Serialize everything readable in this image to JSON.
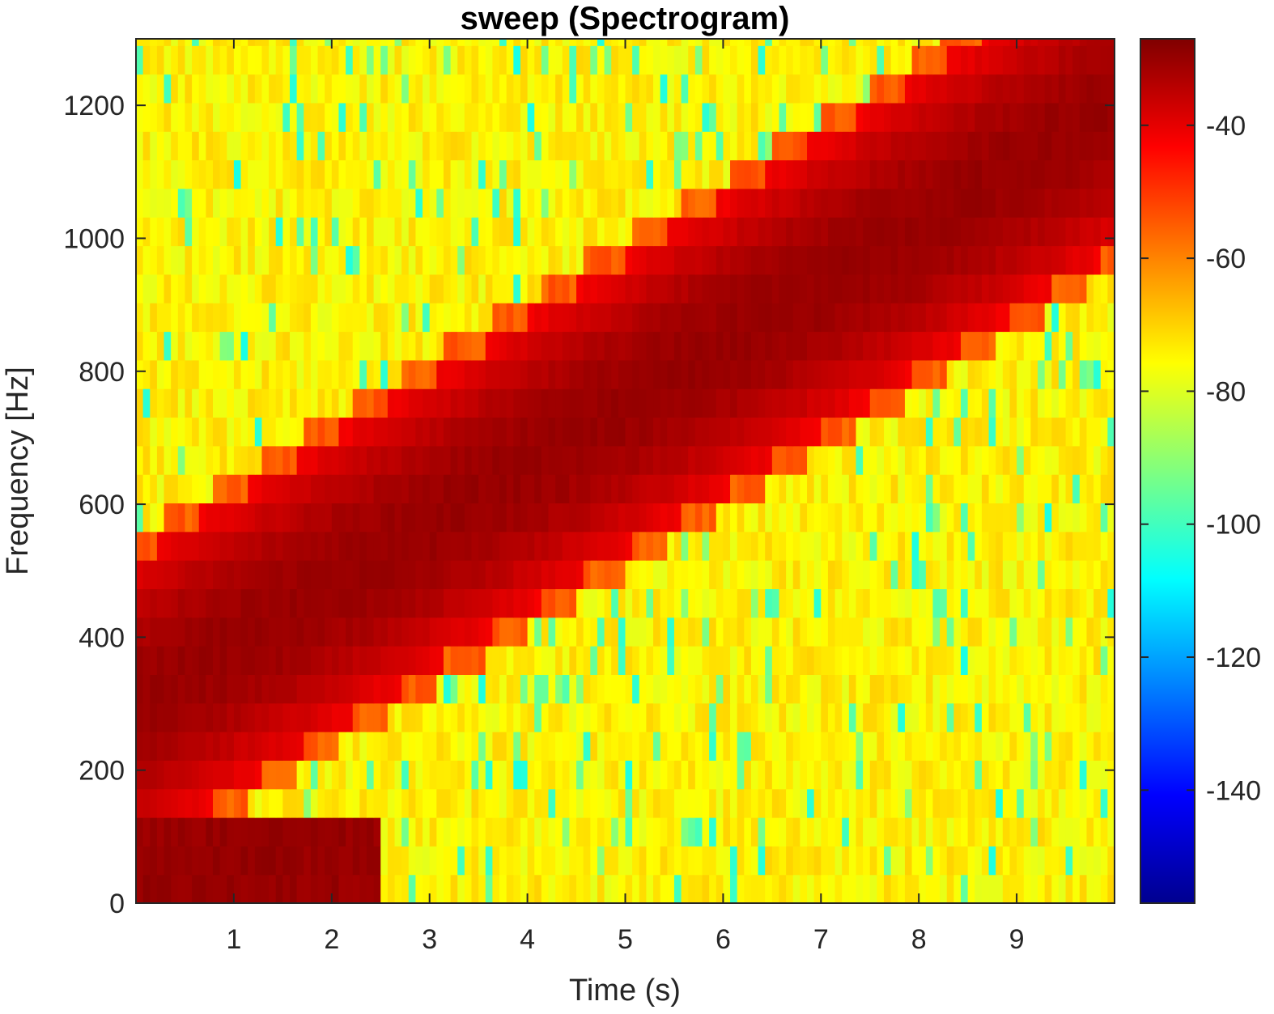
{
  "chart_data": {
    "type": "heatmap",
    "title": "sweep (Spectrogram)",
    "xlabel": "Time (s)",
    "ylabel": "Frequency [Hz]",
    "xlim": [
      0,
      10
    ],
    "ylim": [
      0,
      1300
    ],
    "x_ticks": [
      1,
      2,
      3,
      4,
      5,
      6,
      7,
      8,
      9
    ],
    "y_ticks": [
      0,
      200,
      400,
      600,
      800,
      1000,
      1200
    ],
    "colormap": "jet",
    "colorbar": {
      "clim": [
        -157,
        -27
      ],
      "ticks": [
        -140,
        -120,
        -100,
        -80,
        -60,
        -40
      ]
    },
    "frequency_bins_hz": [
      0,
      43,
      86,
      129,
      172,
      215,
      258,
      301,
      344,
      387,
      430,
      473,
      516,
      559,
      602,
      645,
      688,
      731,
      774,
      817,
      860,
      903,
      946,
      989,
      1032,
      1075,
      1118,
      1161,
      1204,
      1247,
      1290
    ],
    "sweep": {
      "description_free": true,
      "start_time_s": 0,
      "end_time_s": 10,
      "start_frequency_hz": 300,
      "end_frequency_hz": 1200,
      "band_half_width_hz": 220,
      "peak_level_db": -30,
      "floor_level_db": -75,
      "noise_dips_db": -105
    }
  }
}
